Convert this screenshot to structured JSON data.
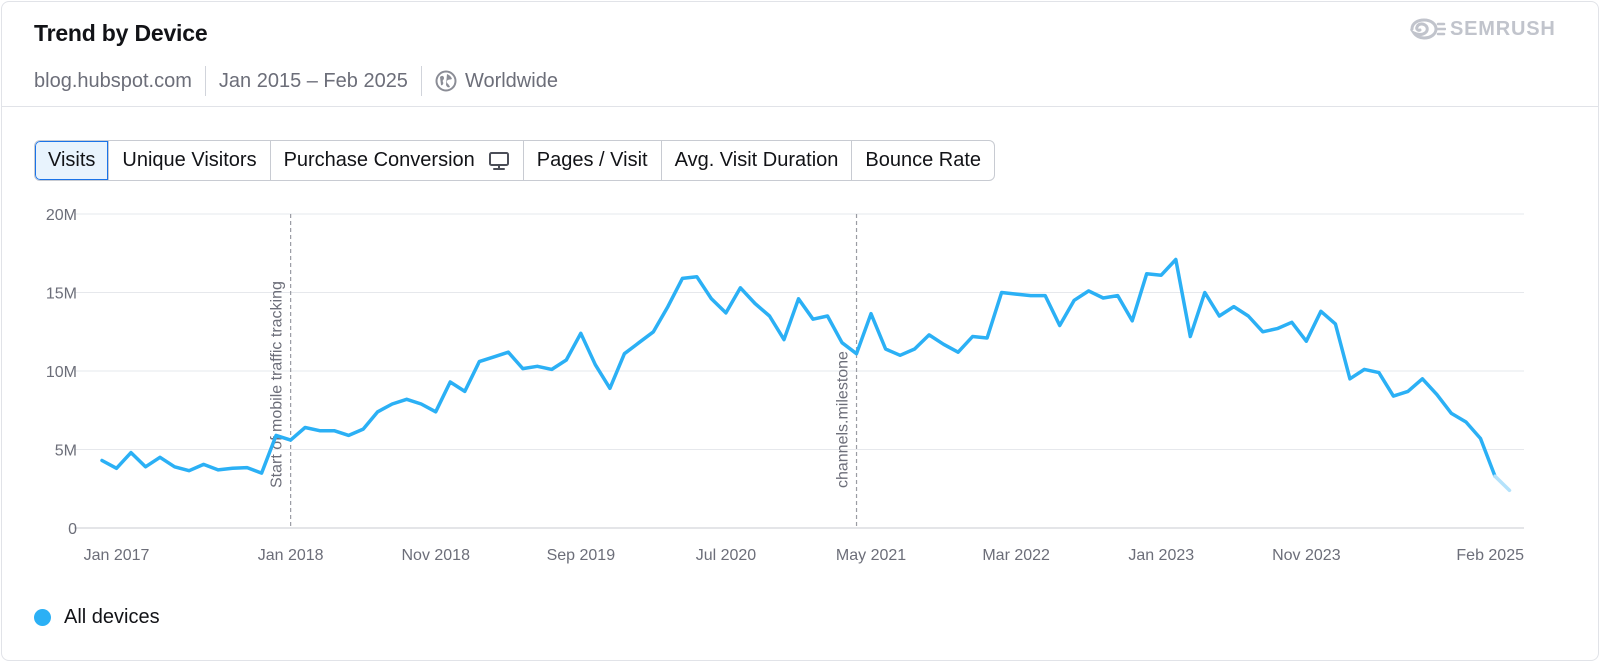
{
  "header": {
    "title": "Trend by Device",
    "domain": "blog.hubspot.com",
    "date_range": "Jan 2015 – Feb 2025",
    "region": "Worldwide",
    "brand": "SEMRUSH"
  },
  "tabs": [
    {
      "label": "Visits",
      "active": true
    },
    {
      "label": "Unique Visitors",
      "active": false
    },
    {
      "label": "Purchase Conversion",
      "active": false,
      "icon": "desktop-icon"
    },
    {
      "label": "Pages / Visit",
      "active": false
    },
    {
      "label": "Avg. Visit Duration",
      "active": false
    },
    {
      "label": "Bounce Rate",
      "active": false
    }
  ],
  "colors": {
    "series": "#2bb0f5",
    "series_partial": "#b4e2fb",
    "grid": "#e6e8ec",
    "annotation": "#9a9ca3"
  },
  "chart_data": {
    "type": "line",
    "ylim": [
      0,
      20
    ],
    "y_unit": "M",
    "y_ticks": [
      {
        "value": 0,
        "label": "0"
      },
      {
        "value": 5,
        "label": "5M"
      },
      {
        "value": 10,
        "label": "10M"
      },
      {
        "value": 15,
        "label": "15M"
      },
      {
        "value": 20,
        "label": "20M"
      }
    ],
    "x_range": [
      "2016-12",
      "2025-02"
    ],
    "x_ticks": [
      {
        "date": "2017-01",
        "label": "Jan 2017"
      },
      {
        "date": "2018-01",
        "label": "Jan 2018"
      },
      {
        "date": "2018-11",
        "label": "Nov 2018"
      },
      {
        "date": "2019-09",
        "label": "Sep 2019"
      },
      {
        "date": "2020-07",
        "label": "Jul 2020"
      },
      {
        "date": "2021-05",
        "label": "May 2021"
      },
      {
        "date": "2022-03",
        "label": "Mar 2022"
      },
      {
        "date": "2023-01",
        "label": "Jan 2023"
      },
      {
        "date": "2023-11",
        "label": "Nov 2023"
      },
      {
        "date": "2025-02",
        "label": "Feb 2025"
      }
    ],
    "annotations": [
      {
        "date": "2018-01",
        "label": "Start of mobile traffic tracking"
      },
      {
        "date": "2021-04",
        "label": "channels.milestone"
      }
    ],
    "grid": true,
    "legend_position": "bottom-left",
    "series": [
      {
        "name": "All devices",
        "partial_last_point": true,
        "points": [
          [
            "2016-12",
            4.3
          ],
          [
            "2017-01",
            3.8
          ],
          [
            "2017-02",
            4.8
          ],
          [
            "2017-03",
            3.9
          ],
          [
            "2017-04",
            4.5
          ],
          [
            "2017-05",
            3.9
          ],
          [
            "2017-06",
            3.65
          ],
          [
            "2017-07",
            4.05
          ],
          [
            "2017-08",
            3.7
          ],
          [
            "2017-09",
            3.8
          ],
          [
            "2017-10",
            3.85
          ],
          [
            "2017-11",
            3.5
          ],
          [
            "2017-12",
            5.9
          ],
          [
            "2018-01",
            5.6
          ],
          [
            "2018-02",
            6.4
          ],
          [
            "2018-03",
            6.2
          ],
          [
            "2018-04",
            6.2
          ],
          [
            "2018-05",
            5.9
          ],
          [
            "2018-06",
            6.3
          ],
          [
            "2018-07",
            7.4
          ],
          [
            "2018-08",
            7.9
          ],
          [
            "2018-09",
            8.2
          ],
          [
            "2018-10",
            7.9
          ],
          [
            "2018-11",
            7.4
          ],
          [
            "2018-12",
            9.3
          ],
          [
            "2019-01",
            8.7
          ],
          [
            "2019-02",
            10.6
          ],
          [
            "2019-03",
            10.9
          ],
          [
            "2019-04",
            11.2
          ],
          [
            "2019-05",
            10.15
          ],
          [
            "2019-06",
            10.3
          ],
          [
            "2019-07",
            10.1
          ],
          [
            "2019-08",
            10.7
          ],
          [
            "2019-09",
            12.4
          ],
          [
            "2019-10",
            10.4
          ],
          [
            "2019-11",
            8.9
          ],
          [
            "2019-12",
            11.1
          ],
          [
            "2020-01",
            11.8
          ],
          [
            "2020-02",
            12.5
          ],
          [
            "2020-03",
            14.1
          ],
          [
            "2020-04",
            15.9
          ],
          [
            "2020-05",
            16.0
          ],
          [
            "2020-06",
            14.6
          ],
          [
            "2020-07",
            13.7
          ],
          [
            "2020-08",
            15.3
          ],
          [
            "2020-09",
            14.3
          ],
          [
            "2020-10",
            13.5
          ],
          [
            "2020-11",
            12.0
          ],
          [
            "2020-12",
            14.6
          ],
          [
            "2021-01",
            13.3
          ],
          [
            "2021-02",
            13.5
          ],
          [
            "2021-03",
            11.8
          ],
          [
            "2021-04",
            11.1
          ],
          [
            "2021-05",
            13.65
          ],
          [
            "2021-06",
            11.4
          ],
          [
            "2021-07",
            11.0
          ],
          [
            "2021-08",
            11.4
          ],
          [
            "2021-09",
            12.3
          ],
          [
            "2021-10",
            11.7
          ],
          [
            "2021-11",
            11.2
          ],
          [
            "2021-12",
            12.2
          ],
          [
            "2022-01",
            12.1
          ],
          [
            "2022-02",
            15.0
          ],
          [
            "2022-03",
            14.9
          ],
          [
            "2022-04",
            14.8
          ],
          [
            "2022-05",
            14.8
          ],
          [
            "2022-06",
            12.9
          ],
          [
            "2022-07",
            14.5
          ],
          [
            "2022-08",
            15.1
          ],
          [
            "2022-09",
            14.65
          ],
          [
            "2022-10",
            14.8
          ],
          [
            "2022-11",
            13.2
          ],
          [
            "2022-12",
            16.2
          ],
          [
            "2023-01",
            16.1
          ],
          [
            "2023-02",
            17.1
          ],
          [
            "2023-03",
            12.2
          ],
          [
            "2023-04",
            15.0
          ],
          [
            "2023-05",
            13.5
          ],
          [
            "2023-06",
            14.1
          ],
          [
            "2023-07",
            13.5
          ],
          [
            "2023-08",
            12.5
          ],
          [
            "2023-09",
            12.7
          ],
          [
            "2023-10",
            13.1
          ],
          [
            "2023-11",
            11.9
          ],
          [
            "2023-12",
            13.8
          ],
          [
            "2024-01",
            13.0
          ],
          [
            "2024-02",
            9.5
          ],
          [
            "2024-03",
            10.1
          ],
          [
            "2024-04",
            9.9
          ],
          [
            "2024-05",
            8.4
          ],
          [
            "2024-06",
            8.7
          ],
          [
            "2024-07",
            9.5
          ],
          [
            "2024-08",
            8.5
          ],
          [
            "2024-09",
            7.3
          ],
          [
            "2024-10",
            6.75
          ],
          [
            "2024-11",
            5.7
          ],
          [
            "2024-12",
            3.3
          ],
          [
            "2025-01",
            2.4
          ]
        ]
      }
    ]
  }
}
